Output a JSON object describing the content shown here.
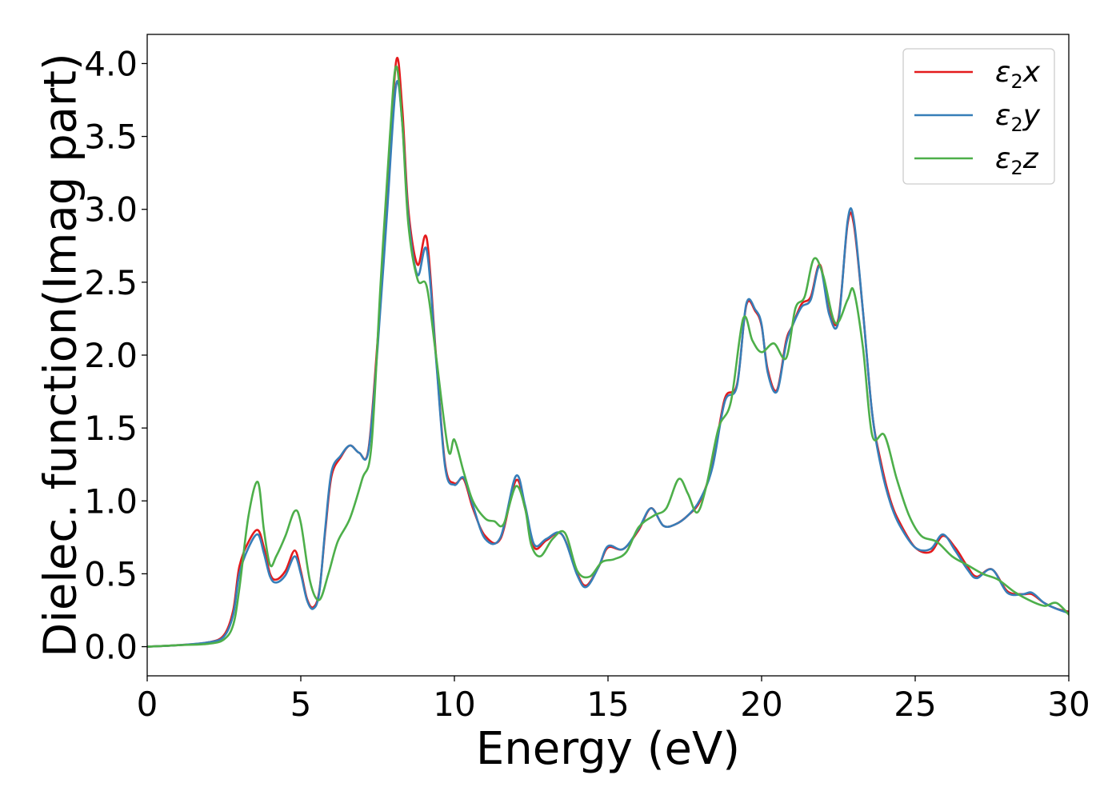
{
  "chart_data": {
    "type": "line",
    "title": "",
    "xlabel": "Energy (eV)",
    "ylabel": "Dielec. function(Imag part)",
    "xlim": [
      0,
      30
    ],
    "ylim": [
      -0.2,
      4.2
    ],
    "xticks": [
      0,
      5,
      10,
      15,
      20,
      25,
      30
    ],
    "xtick_labels": [
      "0",
      "5",
      "10",
      "15",
      "20",
      "25",
      "30"
    ],
    "yticks": [
      0.0,
      0.5,
      1.0,
      1.5,
      2.0,
      2.5,
      3.0,
      3.5,
      4.0
    ],
    "ytick_labels": [
      "0.0",
      "0.5",
      "1.0",
      "1.5",
      "2.0",
      "2.5",
      "3.0",
      "3.5",
      "4.0"
    ],
    "grid": false,
    "legend_position": "top-right",
    "series": [
      {
        "name": "ε₂x",
        "legend_base": "ε",
        "legend_sub": "2",
        "legend_var": "x",
        "color": "#e41a1c",
        "x": [
          0,
          1,
          2,
          2.5,
          2.8,
          3.0,
          3.3,
          3.6,
          3.8,
          4.0,
          4.2,
          4.5,
          4.8,
          5.0,
          5.2,
          5.4,
          5.6,
          5.8,
          6.0,
          6.3,
          6.6,
          6.9,
          7.2,
          7.5,
          7.8,
          8.1,
          8.3,
          8.5,
          8.8,
          9.1,
          9.4,
          9.7,
          10.0,
          10.3,
          10.6,
          11.0,
          11.5,
          12.0,
          12.3,
          12.6,
          13.0,
          13.5,
          14.0,
          14.3,
          14.7,
          15.0,
          15.5,
          16.0,
          16.4,
          16.8,
          17.2,
          17.6,
          18.0,
          18.4,
          18.8,
          19.2,
          19.5,
          19.8,
          20.0,
          20.2,
          20.5,
          20.8,
          21.0,
          21.3,
          21.6,
          21.9,
          22.2,
          22.5,
          22.8,
          23.0,
          23.3,
          23.6,
          23.9,
          24.2,
          24.5,
          25.0,
          25.5,
          25.9,
          26.3,
          26.7,
          27.0,
          27.5,
          28.0,
          28.5,
          28.8,
          29.2,
          29.6,
          30.0
        ],
        "values": [
          0.0,
          0.01,
          0.03,
          0.08,
          0.25,
          0.55,
          0.72,
          0.8,
          0.68,
          0.5,
          0.46,
          0.52,
          0.66,
          0.52,
          0.33,
          0.27,
          0.38,
          0.8,
          1.17,
          1.3,
          1.38,
          1.33,
          1.35,
          2.1,
          3.0,
          4.01,
          3.7,
          3.0,
          2.62,
          2.8,
          2.0,
          1.25,
          1.12,
          1.15,
          0.95,
          0.76,
          0.74,
          1.14,
          0.95,
          0.68,
          0.73,
          0.77,
          0.5,
          0.42,
          0.55,
          0.68,
          0.67,
          0.8,
          0.95,
          0.83,
          0.84,
          0.9,
          1.0,
          1.25,
          1.7,
          1.8,
          2.34,
          2.3,
          2.2,
          1.9,
          1.76,
          2.1,
          2.2,
          2.35,
          2.4,
          2.62,
          2.3,
          2.25,
          2.9,
          2.9,
          2.3,
          1.6,
          1.25,
          1.0,
          0.85,
          0.68,
          0.65,
          0.76,
          0.68,
          0.55,
          0.48,
          0.53,
          0.38,
          0.36,
          0.36,
          0.3,
          0.26,
          0.24
        ]
      },
      {
        "name": "ε₂y",
        "legend_base": "ε",
        "legend_sub": "2",
        "legend_var": "y",
        "color": "#377eb8",
        "x": [
          0,
          1,
          2,
          2.5,
          2.8,
          3.0,
          3.3,
          3.6,
          3.8,
          4.0,
          4.2,
          4.5,
          4.8,
          5.0,
          5.2,
          5.4,
          5.6,
          5.8,
          6.0,
          6.3,
          6.6,
          6.9,
          7.2,
          7.5,
          7.8,
          8.1,
          8.3,
          8.5,
          8.8,
          9.1,
          9.4,
          9.7,
          10.0,
          10.3,
          10.6,
          11.0,
          11.5,
          12.0,
          12.3,
          12.6,
          13.0,
          13.5,
          14.0,
          14.3,
          14.7,
          15.0,
          15.5,
          16.0,
          16.4,
          16.8,
          17.2,
          17.6,
          18.0,
          18.4,
          18.8,
          19.2,
          19.5,
          19.8,
          20.0,
          20.2,
          20.5,
          20.8,
          21.0,
          21.3,
          21.6,
          21.9,
          22.2,
          22.5,
          22.8,
          23.0,
          23.3,
          23.6,
          23.9,
          24.2,
          24.5,
          25.0,
          25.5,
          25.9,
          26.3,
          26.7,
          27.0,
          27.5,
          28.0,
          28.5,
          28.8,
          29.2,
          29.6,
          30.0
        ],
        "values": [
          0.0,
          0.01,
          0.03,
          0.07,
          0.22,
          0.5,
          0.68,
          0.77,
          0.64,
          0.48,
          0.44,
          0.49,
          0.62,
          0.5,
          0.32,
          0.26,
          0.37,
          0.82,
          1.2,
          1.31,
          1.38,
          1.33,
          1.34,
          2.05,
          2.95,
          3.85,
          3.6,
          2.95,
          2.55,
          2.72,
          1.98,
          1.23,
          1.11,
          1.16,
          0.97,
          0.74,
          0.75,
          1.17,
          0.97,
          0.7,
          0.74,
          0.77,
          0.49,
          0.41,
          0.55,
          0.69,
          0.67,
          0.81,
          0.95,
          0.83,
          0.84,
          0.9,
          1.01,
          1.23,
          1.68,
          1.79,
          2.35,
          2.31,
          2.21,
          1.88,
          1.75,
          2.08,
          2.2,
          2.33,
          2.38,
          2.61,
          2.28,
          2.23,
          2.92,
          2.93,
          2.3,
          1.6,
          1.22,
          0.98,
          0.83,
          0.68,
          0.67,
          0.77,
          0.66,
          0.53,
          0.47,
          0.53,
          0.37,
          0.36,
          0.37,
          0.3,
          0.26,
          0.23
        ]
      },
      {
        "name": "ε₂z",
        "legend_base": "ε",
        "legend_sub": "2",
        "legend_var": "z",
        "color": "#4daf4a",
        "x": [
          0,
          1,
          2,
          2.5,
          2.8,
          3.0,
          3.3,
          3.6,
          3.8,
          4.0,
          4.2,
          4.5,
          4.8,
          5.0,
          5.3,
          5.6,
          5.9,
          6.2,
          6.6,
          7.0,
          7.3,
          7.6,
          7.9,
          8.1,
          8.3,
          8.5,
          8.8,
          9.1,
          9.4,
          9.8,
          10.0,
          10.3,
          10.6,
          11.0,
          11.3,
          11.6,
          12.0,
          12.3,
          12.5,
          12.8,
          13.2,
          13.6,
          14.0,
          14.4,
          14.8,
          15.2,
          15.6,
          16.0,
          16.5,
          16.9,
          17.3,
          17.6,
          17.9,
          18.2,
          18.6,
          19.0,
          19.4,
          19.7,
          20.0,
          20.4,
          20.8,
          21.1,
          21.4,
          21.7,
          22.0,
          22.4,
          22.8,
          23.0,
          23.3,
          23.6,
          24.0,
          24.4,
          24.8,
          25.2,
          25.7,
          26.2,
          26.7,
          27.2,
          27.7,
          28.2,
          28.7,
          29.2,
          29.6,
          30.0
        ],
        "values": [
          0.0,
          0.01,
          0.02,
          0.05,
          0.15,
          0.4,
          0.9,
          1.13,
          0.8,
          0.56,
          0.62,
          0.76,
          0.93,
          0.85,
          0.45,
          0.32,
          0.5,
          0.72,
          0.88,
          1.15,
          1.38,
          2.5,
          3.5,
          3.98,
          3.6,
          2.9,
          2.52,
          2.47,
          2.0,
          1.35,
          1.42,
          1.2,
          1.0,
          0.88,
          0.86,
          0.84,
          1.1,
          0.95,
          0.7,
          0.62,
          0.74,
          0.78,
          0.52,
          0.48,
          0.58,
          0.6,
          0.65,
          0.82,
          0.9,
          0.95,
          1.15,
          1.05,
          0.92,
          1.1,
          1.5,
          1.68,
          2.25,
          2.1,
          2.02,
          2.08,
          1.98,
          2.32,
          2.4,
          2.66,
          2.55,
          2.22,
          2.38,
          2.44,
          2.05,
          1.45,
          1.45,
          1.15,
          0.9,
          0.76,
          0.72,
          0.62,
          0.56,
          0.5,
          0.46,
          0.38,
          0.32,
          0.28,
          0.3,
          0.22
        ]
      }
    ]
  }
}
